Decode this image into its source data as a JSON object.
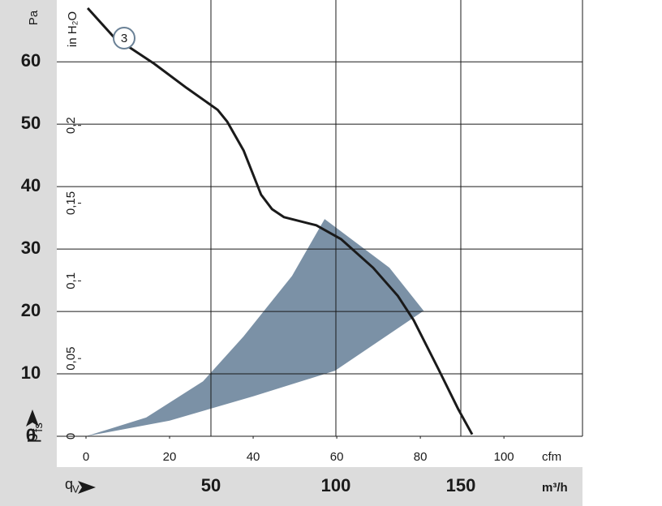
{
  "chart_data": {
    "type": "fan-curve",
    "y_label": "Pa",
    "y_symbol": "p",
    "y_symbol_sub": "fs",
    "y2_label": "in H₂O",
    "x_unit": "cfm",
    "x2_unit": "m³/h",
    "x_symbol": "q",
    "x_symbol_sub": "V",
    "xlim": [
      0,
      118.8
    ],
    "xticks": [
      0,
      20,
      40,
      60,
      80,
      100
    ],
    "x2lim": [
      0,
      198.7
    ],
    "x2ticks": [
      50,
      100,
      150
    ],
    "ylim": [
      0,
      68.6
    ],
    "yticks": [
      0,
      10,
      20,
      30,
      40,
      50,
      60
    ],
    "y2lim": [
      0,
      0.2755
    ],
    "y2ticks": [
      0,
      {
        "value": 0.05,
        "label": "0,05"
      },
      {
        "value": 0.1,
        "label": "0,1"
      },
      {
        "value": 0.15,
        "label": "0,15"
      },
      {
        "value": 0.2,
        "label": "0,2"
      }
    ],
    "grid": true,
    "series": [
      {
        "name": "3",
        "color": "#1a1a1a",
        "x": [
          0.4,
          6.6,
          16.3,
          24.1,
          31.5,
          33.8,
          37.7,
          41.9,
          44.5,
          47.4,
          55.1,
          61.0,
          68.7,
          74.6,
          78.4,
          84.3,
          89.1,
          92.4
        ],
        "values": [
          68.6,
          64.0,
          59.7,
          55.8,
          52.3,
          50.4,
          45.8,
          38.7,
          36.4,
          35.1,
          33.8,
          31.6,
          27.0,
          22.5,
          18.6,
          10.8,
          4.3,
          0.3
        ]
      },
      {
        "kind": "range",
        "color": "#7b91a6",
        "x": [
          0,
          20,
          40,
          59.6,
          80.8,
          72.6,
          57.1,
          49.3,
          37.7,
          28,
          14.4,
          0
        ],
        "values": [
          0,
          2.5,
          6.4,
          10.5,
          20.1,
          27.0,
          34.8,
          25.7,
          16.0,
          8.8,
          3.0,
          0
        ]
      }
    ]
  }
}
